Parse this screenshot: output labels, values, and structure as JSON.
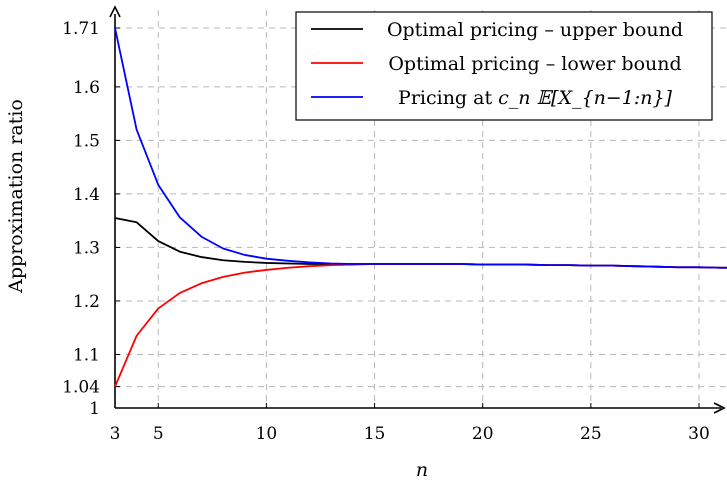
{
  "chart_data": {
    "type": "line",
    "xlabel": "n",
    "ylabel": "Approximation ratio",
    "xlim": [
      3,
      32
    ],
    "ylim": [
      1,
      1.71
    ],
    "xticks": [
      3,
      5,
      10,
      15,
      20,
      25,
      30
    ],
    "yticks": [
      1,
      1.04,
      1.1,
      1.2,
      1.3,
      1.4,
      1.5,
      1.6,
      1.71
    ],
    "grid": true,
    "legend_position": "top-right",
    "x": [
      3,
      4,
      5,
      6,
      7,
      8,
      9,
      10,
      11,
      12,
      13,
      14,
      15,
      16,
      17,
      18,
      19,
      20,
      21,
      22,
      23,
      24,
      25,
      26,
      27,
      28,
      29,
      30,
      31,
      32
    ],
    "series": [
      {
        "name": "Optimal pricing – upper bound",
        "color": "#000000",
        "values": [
          1.355,
          1.347,
          1.312,
          1.292,
          1.282,
          1.276,
          1.273,
          1.271,
          1.27,
          1.269,
          1.269,
          1.269,
          1.269,
          1.269,
          1.269,
          1.269,
          1.269,
          1.268,
          1.268,
          1.268,
          1.267,
          1.267,
          1.266,
          1.266,
          1.265,
          1.264,
          1.263,
          1.263,
          1.262,
          1.262
        ]
      },
      {
        "name": "Optimal pricing – lower bound",
        "color": "#ff0000",
        "values": [
          1.04,
          1.135,
          1.186,
          1.215,
          1.233,
          1.245,
          1.253,
          1.258,
          1.262,
          1.265,
          1.267,
          1.268,
          1.269,
          1.269,
          1.269,
          1.269,
          1.269,
          1.268,
          1.268,
          1.268,
          1.267,
          1.267,
          1.266,
          1.266,
          1.265,
          1.264,
          1.263,
          1.263,
          1.262,
          1.262
        ]
      },
      {
        "name": "Pricing at",
        "name_math": "c_n 𝔼[X_{n−1:n}]",
        "color": "#0000ff",
        "values": [
          1.71,
          1.52,
          1.417,
          1.356,
          1.32,
          1.298,
          1.286,
          1.279,
          1.275,
          1.272,
          1.27,
          1.269,
          1.269,
          1.269,
          1.269,
          1.269,
          1.269,
          1.268,
          1.268,
          1.268,
          1.267,
          1.267,
          1.266,
          1.266,
          1.265,
          1.264,
          1.263,
          1.263,
          1.262,
          1.262
        ]
      }
    ]
  }
}
